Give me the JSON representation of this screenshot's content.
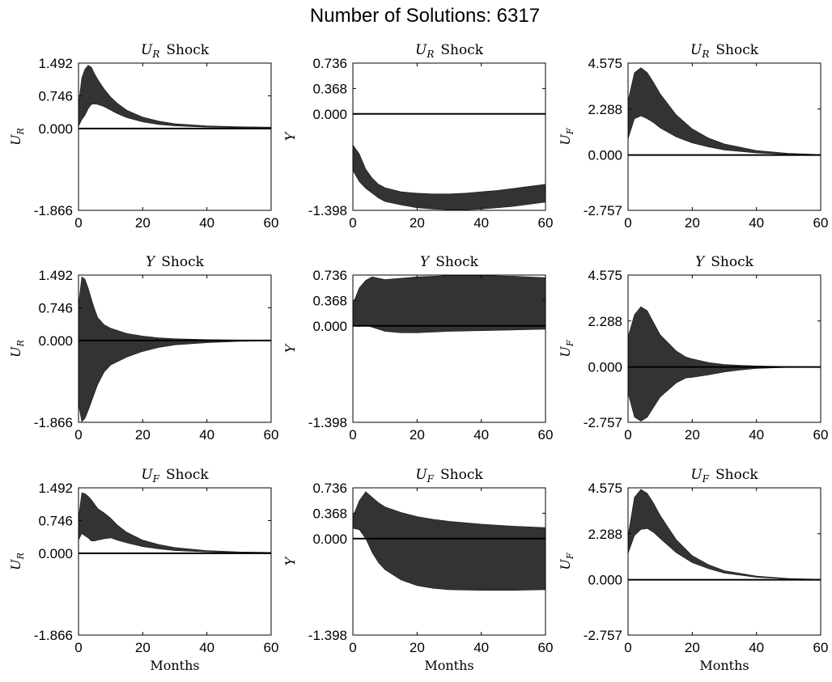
{
  "figure": {
    "title": "Number of Solutions: 6317"
  },
  "chart_data": [
    {
      "type": "area",
      "row": 0,
      "col": 0,
      "title": {
        "var": "U",
        "sub": "R",
        "suffix": "Shock"
      },
      "ylabel": {
        "var": "U",
        "sub": "R"
      },
      "xlabel": "",
      "xlim": [
        0,
        60
      ],
      "ylim": [
        -1.866,
        1.492
      ],
      "xticks": [
        "0",
        "20",
        "40",
        "60"
      ],
      "yticks": [
        -1.866,
        0.0,
        0.746,
        1.492
      ],
      "ytick_labels": [
        "-1.866",
        "0.000",
        "0.746",
        "1.492"
      ],
      "x": [
        0,
        1,
        2,
        3,
        4,
        5,
        6,
        8,
        10,
        12,
        15,
        20,
        25,
        30,
        40,
        50,
        60
      ],
      "upper": [
        0.55,
        1.15,
        1.35,
        1.44,
        1.4,
        1.25,
        1.12,
        0.9,
        0.72,
        0.58,
        0.42,
        0.26,
        0.17,
        0.11,
        0.06,
        0.04,
        0.03
      ],
      "lower": [
        0.05,
        0.2,
        0.3,
        0.45,
        0.55,
        0.56,
        0.55,
        0.5,
        0.42,
        0.34,
        0.25,
        0.15,
        0.09,
        0.06,
        0.03,
        0.02,
        0.01
      ]
    },
    {
      "type": "area",
      "row": 0,
      "col": 1,
      "title": {
        "var": "U",
        "sub": "R",
        "suffix": "Shock"
      },
      "ylabel": {
        "var": "Y",
        "sub": ""
      },
      "xlabel": "",
      "xlim": [
        0,
        60
      ],
      "ylim": [
        -1.398,
        0.736
      ],
      "xticks": [
        "0",
        "20",
        "40",
        "60"
      ],
      "yticks": [
        -1.398,
        0.0,
        0.368,
        0.736
      ],
      "ytick_labels": [
        "-1.398",
        "0.000",
        "0.368",
        "0.736"
      ],
      "x": [
        0,
        2,
        4,
        6,
        8,
        10,
        15,
        20,
        25,
        30,
        35,
        40,
        45,
        50,
        55,
        60
      ],
      "upper": [
        -0.45,
        -0.58,
        -0.8,
        -0.93,
        -1.02,
        -1.07,
        -1.13,
        -1.15,
        -1.16,
        -1.16,
        -1.15,
        -1.13,
        -1.11,
        -1.08,
        -1.05,
        -1.02
      ],
      "lower": [
        -0.82,
        -0.98,
        -1.08,
        -1.15,
        -1.22,
        -1.27,
        -1.32,
        -1.36,
        -1.38,
        -1.39,
        -1.39,
        -1.38,
        -1.36,
        -1.34,
        -1.31,
        -1.28
      ]
    },
    {
      "type": "area",
      "row": 0,
      "col": 2,
      "title": {
        "var": "U",
        "sub": "R",
        "suffix": "Shock"
      },
      "ylabel": {
        "var": "U",
        "sub": "F"
      },
      "xlabel": "",
      "xlim": [
        0,
        60
      ],
      "ylim": [
        -2.757,
        4.575
      ],
      "xticks": [
        "0",
        "20",
        "40",
        "60"
      ],
      "yticks": [
        -2.757,
        0.0,
        2.288,
        4.575
      ],
      "ytick_labels": [
        "-2.757",
        "0.000",
        "2.288",
        "4.575"
      ],
      "x": [
        0,
        2,
        4,
        6,
        8,
        10,
        15,
        20,
        25,
        30,
        40,
        50,
        60
      ],
      "upper": [
        2.7,
        4.1,
        4.35,
        4.1,
        3.6,
        3.05,
        2.0,
        1.3,
        0.85,
        0.55,
        0.22,
        0.08,
        0.02
      ],
      "lower": [
        0.8,
        1.8,
        1.95,
        1.8,
        1.6,
        1.35,
        0.9,
        0.6,
        0.4,
        0.25,
        0.1,
        0.03,
        0.0
      ]
    },
    {
      "type": "area",
      "row": 1,
      "col": 0,
      "title": {
        "var": "Y",
        "sub": "",
        "suffix": "Shock"
      },
      "ylabel": {
        "var": "U",
        "sub": "R"
      },
      "xlabel": "",
      "xlim": [
        0,
        60
      ],
      "ylim": [
        -1.866,
        1.492
      ],
      "xticks": [
        "0",
        "20",
        "40",
        "60"
      ],
      "yticks": [
        -1.866,
        0.0,
        0.746,
        1.492
      ],
      "ytick_labels": [
        "-1.866",
        "0.000",
        "0.746",
        "1.492"
      ],
      "x": [
        0,
        1,
        2,
        3,
        4,
        5,
        6,
        8,
        10,
        15,
        20,
        25,
        30,
        40,
        50,
        60
      ],
      "upper": [
        0.8,
        1.45,
        1.4,
        1.2,
        0.95,
        0.72,
        0.52,
        0.36,
        0.28,
        0.16,
        0.1,
        0.06,
        0.04,
        0.02,
        0.01,
        0.0
      ],
      "lower": [
        -1.45,
        -1.85,
        -1.78,
        -1.6,
        -1.4,
        -1.2,
        -1.0,
        -0.72,
        -0.56,
        -0.38,
        -0.25,
        -0.16,
        -0.1,
        -0.05,
        -0.02,
        -0.01
      ]
    },
    {
      "type": "area",
      "row": 1,
      "col": 1,
      "title": {
        "var": "Y",
        "sub": "",
        "suffix": "Shock"
      },
      "ylabel": {
        "var": "Y",
        "sub": ""
      },
      "xlabel": "",
      "xlim": [
        0,
        60
      ],
      "ylim": [
        -1.398,
        0.736
      ],
      "xticks": [
        "0",
        "20",
        "40",
        "60"
      ],
      "yticks": [
        -1.398,
        0.0,
        0.368,
        0.736
      ],
      "ytick_labels": [
        "-1.398",
        "0.000",
        "0.368",
        "0.736"
      ],
      "x": [
        0,
        2,
        4,
        6,
        8,
        10,
        15,
        20,
        25,
        30,
        40,
        50,
        60
      ],
      "upper": [
        0.32,
        0.55,
        0.66,
        0.71,
        0.69,
        0.67,
        0.69,
        0.71,
        0.72,
        0.73,
        0.73,
        0.72,
        0.7
      ],
      "lower": [
        0.0,
        -0.01,
        0.01,
        -0.02,
        -0.05,
        -0.08,
        -0.1,
        -0.1,
        -0.09,
        -0.08,
        -0.07,
        -0.06,
        -0.05
      ]
    },
    {
      "type": "area",
      "row": 1,
      "col": 2,
      "title": {
        "var": "Y",
        "sub": "",
        "suffix": "Shock"
      },
      "ylabel": {
        "var": "U",
        "sub": "F"
      },
      "xlabel": "",
      "xlim": [
        0,
        60
      ],
      "ylim": [
        -2.757,
        4.575
      ],
      "xticks": [
        "0",
        "20",
        "40",
        "60"
      ],
      "yticks": [
        -2.757,
        0.0,
        2.288,
        4.575
      ],
      "ytick_labels": [
        "-2.757",
        "0.000",
        "2.288",
        "4.575"
      ],
      "x": [
        0,
        2,
        4,
        6,
        8,
        10,
        15,
        18,
        20,
        25,
        30,
        35,
        40,
        50,
        60
      ],
      "upper": [
        1.5,
        2.6,
        3.0,
        2.8,
        2.2,
        1.6,
        0.8,
        0.5,
        0.4,
        0.22,
        0.12,
        0.08,
        0.05,
        0.02,
        0.0
      ],
      "lower": [
        -1.3,
        -2.5,
        -2.7,
        -2.5,
        -2.0,
        -1.5,
        -0.8,
        -0.55,
        -0.52,
        -0.4,
        -0.25,
        -0.15,
        -0.08,
        -0.02,
        0.0
      ]
    },
    {
      "type": "area",
      "row": 2,
      "col": 0,
      "title": {
        "var": "U",
        "sub": "F",
        "suffix": "Shock"
      },
      "ylabel": {
        "var": "U",
        "sub": "R"
      },
      "xlabel": "Months",
      "xlim": [
        0,
        60
      ],
      "ylim": [
        -1.866,
        1.492
      ],
      "xticks": [
        "0",
        "20",
        "40",
        "60"
      ],
      "yticks": [
        -1.866,
        0.0,
        0.746,
        1.492
      ],
      "ytick_labels": [
        "-1.866",
        "0.000",
        "0.746",
        "1.492"
      ],
      "x": [
        0,
        1,
        2,
        3,
        4,
        5,
        6,
        8,
        10,
        12,
        15,
        20,
        25,
        30,
        40,
        50,
        60
      ],
      "upper": [
        0.8,
        1.38,
        1.36,
        1.3,
        1.22,
        1.12,
        1.02,
        0.92,
        0.8,
        0.65,
        0.48,
        0.3,
        0.2,
        0.13,
        0.06,
        0.03,
        0.02
      ],
      "lower": [
        0.3,
        0.45,
        0.4,
        0.35,
        0.28,
        0.28,
        0.3,
        0.33,
        0.35,
        0.3,
        0.24,
        0.15,
        0.1,
        0.06,
        0.03,
        0.01,
        0.0
      ]
    },
    {
      "type": "area",
      "row": 2,
      "col": 1,
      "title": {
        "var": "U",
        "sub": "F",
        "suffix": "Shock"
      },
      "ylabel": {
        "var": "Y",
        "sub": ""
      },
      "xlabel": "Months",
      "xlim": [
        0,
        60
      ],
      "ylim": [
        -1.398,
        0.736
      ],
      "xticks": [
        "0",
        "20",
        "40",
        "60"
      ],
      "yticks": [
        -1.398,
        0.0,
        0.368,
        0.736
      ],
      "ytick_labels": [
        "-1.398",
        "0.000",
        "0.368",
        "0.736"
      ],
      "x": [
        0,
        2,
        4,
        6,
        8,
        10,
        15,
        20,
        25,
        30,
        40,
        50,
        60
      ],
      "upper": [
        0.32,
        0.55,
        0.68,
        0.6,
        0.52,
        0.46,
        0.38,
        0.32,
        0.28,
        0.25,
        0.21,
        0.18,
        0.16
      ],
      "lower": [
        0.15,
        0.13,
        0.0,
        -0.2,
        -0.35,
        -0.45,
        -0.6,
        -0.68,
        -0.72,
        -0.74,
        -0.75,
        -0.75,
        -0.74
      ]
    },
    {
      "type": "area",
      "row": 2,
      "col": 2,
      "title": {
        "var": "U",
        "sub": "F",
        "suffix": "Shock"
      },
      "ylabel": {
        "var": "U",
        "sub": "F"
      },
      "xlabel": "Months",
      "xlim": [
        0,
        60
      ],
      "ylim": [
        -2.757,
        4.575
      ],
      "xticks": [
        "0",
        "20",
        "40",
        "60"
      ],
      "yticks": [
        -2.757,
        0.0,
        2.288,
        4.575
      ],
      "ytick_labels": [
        "-2.757",
        "0.000",
        "2.288",
        "4.575"
      ],
      "x": [
        0,
        2,
        4,
        6,
        8,
        10,
        15,
        20,
        25,
        30,
        40,
        50,
        60
      ],
      "upper": [
        2.2,
        4.1,
        4.5,
        4.3,
        3.8,
        3.2,
        2.0,
        1.2,
        0.75,
        0.45,
        0.18,
        0.06,
        0.02
      ],
      "lower": [
        1.3,
        2.2,
        2.5,
        2.55,
        2.35,
        2.05,
        1.35,
        0.85,
        0.55,
        0.33,
        0.12,
        0.04,
        0.01
      ]
    }
  ]
}
